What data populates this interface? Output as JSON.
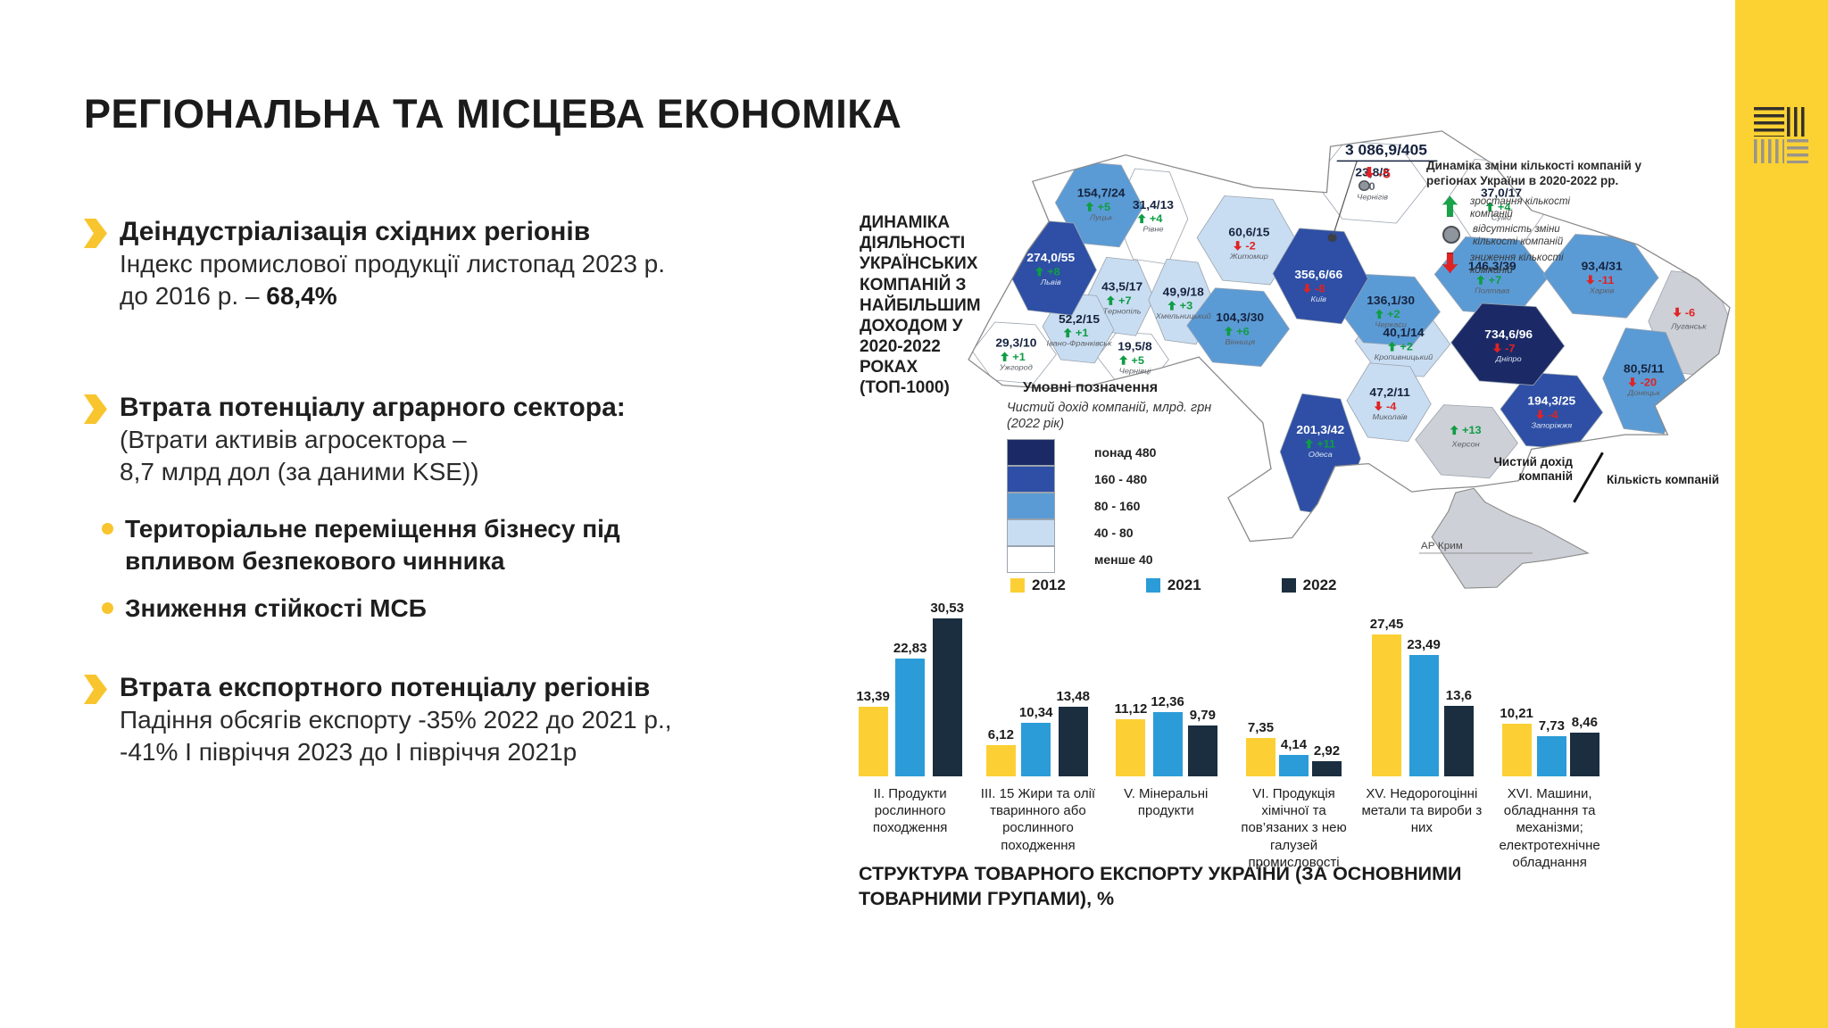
{
  "slide": {
    "title": "РЕГІОНАЛЬНА ТА МІСЦЕВА ЕКОНОМІКА"
  },
  "accent_yellow": "#f8c52e",
  "band_yellow": "#fbd232",
  "bullets": [
    {
      "heading": "Деіндустріалізація східних регіонів",
      "body_pre": "Індекс промислової продукції листопад 2023 р.\nдо 2016 р. – ",
      "body_bold": "68,4%"
    },
    {
      "heading": "Втрата потенціалу аграрного сектора:",
      "body": "(Втрати активів агросектора –\n8,7 млрд дол (за даними KSE))",
      "subitems": [
        "Територіальне переміщення бізнесу під впливом безпекового чинника",
        "Зниження стійкості МСБ"
      ]
    },
    {
      "heading": "Втрата експортного потенціалу регіонів",
      "body": "Падіння обсягів експорту  -35% 2022 до 2021 р.,\n-41% І півріччя 2023 до І півріччя 2021р"
    }
  ],
  "map": {
    "title": "ДИНАМІКА\nДІЯЛЬНОСТІ\nУКРАЇНСЬКИХ\nКОМПАНІЙ З\nНАЙБІЛЬШИМ\nДОХОДОМ У\n2020-2022\nРОКАХ\n(ТОП-1000)",
    "change_legend": {
      "title": "Динаміка зміни кількості компаній у регіонах України в 2020-2022 рр.",
      "items": [
        {
          "icon": "up-arrow-icon",
          "label": "зростання кількості компаній"
        },
        {
          "icon": "no-change-circle-icon",
          "label": "відсутність зміни кількості компаній"
        },
        {
          "icon": "down-arrow-icon",
          "label": "зниження кількості компаній"
        }
      ]
    },
    "income_legend": {
      "title": "Умовні позначення",
      "subtitle": "Чистий дохід компаній, млрд. грн (2022 рік)",
      "classes": [
        {
          "key": "over480",
          "label": "понад 480",
          "color": "#1b2a66"
        },
        {
          "key": "c160_480",
          "label": "160 - 480",
          "color": "#2e4fa5"
        },
        {
          "key": "c80_160",
          "label": "80 - 160",
          "color": "#5b9bd5"
        },
        {
          "key": "c40_80",
          "label": "40 - 80",
          "color": "#c9ddf2"
        },
        {
          "key": "under40",
          "label": "менше 40",
          "color": "#ffffff"
        }
      ],
      "nodata_color": "#cdd0d6"
    },
    "delta_colors": {
      "up": "#0f9d45",
      "down": "#e02222",
      "flat": "#5f666e"
    },
    "callout": {
      "value": "3 086,9/405",
      "delta": "-5",
      "dir": "down"
    },
    "annotation": {
      "numerator": "Чистий дохід компаній",
      "denominator": "Кількість компаній"
    },
    "crimea_label": "АР Крим",
    "regions": [
      {
        "id": "volyn",
        "city": "Луцьк",
        "value": "154,7/24",
        "delta": "+5",
        "dir": "up",
        "class": "c80_160",
        "light": false
      },
      {
        "id": "rivne",
        "city": "Рівне",
        "value": "31,4/13",
        "delta": "+4",
        "dir": "up",
        "class": "under40",
        "light": false
      },
      {
        "id": "zhytomyr",
        "city": "Житомир",
        "value": "60,6/15",
        "delta": "-2",
        "dir": "down",
        "class": "c40_80",
        "light": false
      },
      {
        "id": "kyiv_obl",
        "city": "Київ",
        "value": "356,6/66",
        "delta": "-8",
        "dir": "down",
        "class": "c160_480",
        "light": true
      },
      {
        "id": "chernihiv",
        "city": "Чернігів",
        "value": "23,8/8",
        "delta": "0",
        "dir": "flat",
        "class": "under40",
        "light": false
      },
      {
        "id": "sumy",
        "city": "Суми",
        "value": "37,0/17",
        "delta": "+4",
        "dir": "up",
        "class": "under40",
        "light": false
      },
      {
        "id": "lviv",
        "city": "Львів",
        "value": "274,0/55",
        "delta": "+8",
        "dir": "up",
        "class": "c160_480",
        "light": true
      },
      {
        "id": "ternopil",
        "city": "Тернопіль",
        "value": "43,5/17",
        "delta": "+7",
        "dir": "up",
        "class": "c40_80",
        "light": false
      },
      {
        "id": "khmelnytskyi",
        "city": "Хмельницький",
        "value": "49,9/18",
        "delta": "+3",
        "dir": "up",
        "class": "c40_80",
        "light": false
      },
      {
        "id": "vinnytsia",
        "city": "Вінниця",
        "value": "104,3/30",
        "delta": "+6",
        "dir": "up",
        "class": "c80_160",
        "light": false
      },
      {
        "id": "cherkasy",
        "city": "Черкаси",
        "value": "136,1/30",
        "delta": "+2",
        "dir": "up",
        "class": "c80_160",
        "light": false
      },
      {
        "id": "poltava",
        "city": "Полтава",
        "value": "146,3/39",
        "delta": "+7",
        "dir": "up",
        "class": "c80_160",
        "light": false
      },
      {
        "id": "kharkiv",
        "city": "Харків",
        "value": "93,4/31",
        "delta": "-11",
        "dir": "down",
        "class": "c80_160",
        "light": false
      },
      {
        "id": "luhansk",
        "city": "Луганськ",
        "value": "",
        "delta": "-6",
        "dir": "down",
        "class": "nodata",
        "light": false
      },
      {
        "id": "donetsk",
        "city": "Донецьк",
        "value": "80,5/11",
        "delta": "-20",
        "dir": "down",
        "class": "c80_160",
        "light": false
      },
      {
        "id": "dnipro",
        "city": "Дніпро",
        "value": "734,6/96",
        "delta": "-7",
        "dir": "down",
        "class": "over480",
        "light": true
      },
      {
        "id": "zaporizhzhia",
        "city": "Запоріжжя",
        "value": "194,3/25",
        "delta": "-4",
        "dir": "down",
        "class": "c160_480",
        "light": true
      },
      {
        "id": "kropyvnytskyi",
        "city": "Кропивницький",
        "value": "40,1/14",
        "delta": "+2",
        "dir": "up",
        "class": "c40_80",
        "light": false
      },
      {
        "id": "mykolaiv",
        "city": "Миколаїв",
        "value": "47,2/11",
        "delta": "-4",
        "dir": "down",
        "class": "c40_80",
        "light": false
      },
      {
        "id": "odesa",
        "city": "Одеса",
        "value": "201,3/42",
        "delta": "+11",
        "dir": "up",
        "class": "c160_480",
        "light": true
      },
      {
        "id": "kherson",
        "city": "Херсон",
        "value": "",
        "delta": "+13",
        "dir": "up",
        "class": "nodata",
        "light": false
      },
      {
        "id": "zakarpattia",
        "city": "Ужгород",
        "value": "29,3/10",
        "delta": "+1",
        "dir": "up",
        "class": "under40",
        "light": false
      },
      {
        "id": "ivano_frankivsk",
        "city": "Івано-Франківськ",
        "value": "52,2/15",
        "delta": "+1",
        "dir": "up",
        "class": "c40_80",
        "light": false
      },
      {
        "id": "chernivtsi",
        "city": "Чернівці",
        "value": "19,5/8",
        "delta": "+5",
        "dir": "up",
        "class": "under40",
        "light": false
      }
    ]
  },
  "chart_data": {
    "type": "bar",
    "title": "СТРУКТУРА ТОВАРНОГО ЕКСПОРТУ УКРАЇНИ (ЗА ОСНОВНИМИ ТОВАРНИМИ ГРУПАМИ), %",
    "legend_position": "top",
    "grid": false,
    "ylim": [
      0,
      32
    ],
    "categories": [
      "II. Продукти рослинного походження",
      "III. 15 Жири та олії тваринного або рослинного походження",
      "V. Мінеральні продукти",
      "VI. Продукція хімічної та пов’язаних з нею галузей промисловості",
      "XV. Недорогоцінні метали та вироби з них",
      "XVI. Машини, обладнання та механізми; електротехнічне обладнання"
    ],
    "series": [
      {
        "name": "2012",
        "color": "#fcd035",
        "values": [
          13.39,
          6.12,
          11.12,
          7.35,
          27.45,
          10.21
        ]
      },
      {
        "name": "2021",
        "color": "#2b9cd8",
        "values": [
          22.83,
          10.34,
          12.36,
          4.14,
          23.49,
          7.73
        ]
      },
      {
        "name": "2022",
        "color": "#1a2e3f",
        "values": [
          30.53,
          13.48,
          9.79,
          2.92,
          13.6,
          8.46
        ]
      }
    ]
  }
}
